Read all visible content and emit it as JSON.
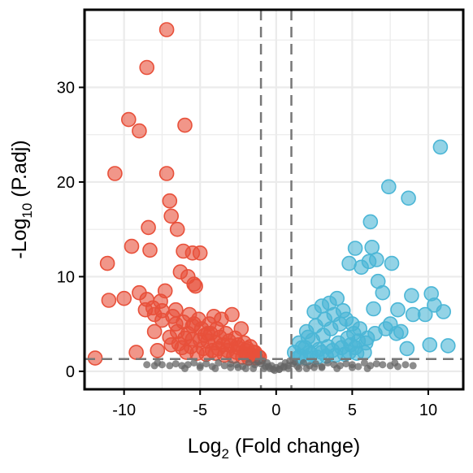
{
  "chart_data": {
    "type": "scatter",
    "title": "",
    "xlabel_main": "Log",
    "xlabel_sub": "2",
    "xlabel_rest": " (Fold change)",
    "ylabel_main": "-Log",
    "ylabel_sub": "10",
    "ylabel_rest": " (P.adj)",
    "xlim": [
      -12.6,
      12.3
    ],
    "ylim": [
      -1.9,
      38.2
    ],
    "x_ticks": [
      -10,
      -5,
      0,
      5,
      10
    ],
    "x_tick_labels": [
      "-10",
      "-5",
      "0",
      "5",
      "10"
    ],
    "y_ticks": [
      0,
      10,
      20,
      30
    ],
    "y_tick_labels": [
      "0",
      "10",
      "20",
      "30"
    ],
    "grid": true,
    "fc_thresholds": [
      -1,
      1
    ],
    "p_threshold": 1.3,
    "colors": {
      "down": "#e8503a",
      "up": "#4bb6d6",
      "ns": "#666666",
      "threshold": "#777777",
      "grid": "#ebebeb"
    },
    "series": [
      {
        "key": "down",
        "color": "#e8503a",
        "x": [
          -7.2,
          -8.5,
          -9.7,
          -9.0,
          -6.0,
          -10.6,
          -7.2,
          -7.0,
          -6.9,
          -6.5,
          -8.4,
          -9.5,
          -8.3,
          -6.1,
          -5.5,
          -5.0,
          -11.1,
          -9.0,
          -6.3,
          -5.8,
          -5.4,
          -10.0,
          -8.5,
          -7.6,
          -11.0,
          -8.1,
          -7.5,
          -8.0,
          -7.5,
          -6.6,
          -5.5,
          -4.5,
          -6.5,
          -5.8,
          -4.7,
          -6.0,
          -5.5,
          -5.0,
          -4.5,
          -4.0,
          -3.5,
          -3.0,
          -2.5,
          -2.0,
          -1.5,
          -1.2,
          -6.2,
          -5.6,
          -4.8,
          -4.2,
          -3.8,
          -3.2,
          -2.6,
          -2.0,
          -1.6,
          -1.1,
          -7.0,
          -6.4,
          -5.9,
          -5.2,
          -4.6,
          -4.0,
          -3.4,
          -2.8,
          -2.2,
          -1.8,
          -1.3,
          -6.8,
          -6.1,
          -5.4,
          -4.9,
          -4.3,
          -3.7,
          -3.1,
          -2.5,
          -1.9,
          -1.4,
          -7.3,
          -6.6,
          -5.7,
          -5.1,
          -4.4,
          -3.9,
          -3.3,
          -2.7,
          -2.1,
          -1.7,
          -8.0,
          -9.2,
          -11.9,
          -8.6,
          -7.8,
          -6.9,
          -5.3,
          -4.1,
          -3.6,
          -2.9,
          -2.3
        ],
        "y": [
          36.1,
          32.1,
          26.6,
          25.4,
          26.0,
          20.9,
          20.9,
          18.0,
          16.4,
          15.0,
          15.2,
          13.2,
          12.8,
          12.7,
          12.5,
          12.5,
          11.4,
          8.3,
          10.5,
          10.0,
          9.2,
          7.7,
          7.6,
          7.4,
          7.5,
          6.7,
          6.4,
          6.0,
          5.4,
          5.0,
          4.8,
          4.0,
          4.2,
          4.0,
          3.8,
          3.5,
          3.4,
          3.3,
          3.2,
          3.0,
          2.8,
          2.7,
          2.5,
          2.2,
          2.0,
          1.6,
          2.5,
          2.6,
          2.4,
          2.2,
          2.4,
          2.2,
          2.0,
          1.8,
          1.7,
          1.5,
          3.6,
          2.9,
          2.0,
          1.9,
          1.8,
          1.9,
          1.7,
          1.6,
          1.5,
          1.4,
          1.4,
          5.8,
          5.2,
          5.0,
          4.5,
          4.0,
          3.6,
          3.2,
          2.8,
          2.4,
          2.0,
          8.5,
          6.5,
          6.0,
          5.5,
          5.0,
          4.5,
          4.0,
          3.5,
          3.0,
          2.6,
          4.2,
          2.0,
          1.4,
          6.5,
          2.2,
          2.8,
          9.0,
          5.8,
          5.5,
          6.0,
          4.5
        ]
      },
      {
        "key": "up",
        "color": "#4bb6d6",
        "x": [
          10.8,
          7.4,
          8.7,
          6.2,
          5.2,
          6.3,
          6.6,
          4.8,
          5.6,
          7.6,
          6.1,
          8.9,
          10.2,
          10.4,
          9.8,
          11.0,
          6.7,
          7.0,
          8.0,
          9.0,
          8.2,
          7.9,
          10.1,
          11.3,
          8.6,
          4.0,
          3.5,
          3.0,
          2.5,
          2.0,
          1.5,
          1.2,
          4.4,
          3.8,
          3.2,
          2.6,
          2.1,
          1.7,
          5.0,
          4.6,
          4.2,
          3.6,
          3.1,
          2.4,
          1.9,
          5.5,
          5.1,
          4.7,
          4.1,
          3.4,
          2.8,
          2.2,
          1.6,
          6.0,
          5.4,
          4.9,
          4.3,
          3.7,
          3.0,
          2.3,
          5.8,
          5.3,
          4.5,
          3.9,
          3.3,
          2.7,
          2.0,
          1.4,
          7.2,
          6.5,
          5.9,
          5.2,
          4.8,
          6.4,
          7.5
        ],
        "y": [
          23.7,
          19.5,
          18.3,
          15.8,
          13.0,
          13.1,
          11.8,
          11.4,
          11.0,
          11.4,
          11.6,
          8.0,
          8.2,
          7.0,
          6.0,
          6.3,
          9.5,
          8.3,
          6.5,
          6.0,
          4.2,
          4.0,
          2.8,
          2.7,
          2.4,
          7.7,
          7.2,
          6.9,
          6.3,
          4.2,
          3.0,
          2.0,
          6.4,
          6.0,
          5.5,
          4.8,
          3.6,
          2.5,
          5.0,
          5.5,
          5.0,
          4.5,
          3.8,
          3.3,
          2.5,
          4.5,
          4.0,
          3.5,
          3.0,
          2.6,
          2.3,
          2.0,
          1.6,
          3.5,
          3.2,
          2.8,
          2.5,
          2.2,
          2.0,
          1.8,
          2.0,
          1.9,
          1.8,
          1.7,
          1.6,
          1.5,
          1.4,
          1.4,
          4.5,
          4.0,
          3.0,
          2.5,
          2.0,
          6.6,
          5.0
        ]
      },
      {
        "key": "ns",
        "color": "#666666",
        "x": [
          -8.5,
          -8.0,
          -7.5,
          -7.0,
          -6.6,
          -6.2,
          -5.8,
          -5.4,
          -5.0,
          -4.6,
          -4.2,
          -3.8,
          -3.4,
          -3.0,
          -2.6,
          -2.2,
          -1.8,
          -1.4,
          -1.0,
          -0.7,
          -0.4,
          -0.1,
          0.2,
          0.5,
          0.8,
          1.1,
          1.4,
          1.8,
          2.2,
          2.6,
          3.0,
          3.4,
          3.8,
          4.2,
          4.6,
          5.0,
          5.4,
          5.8,
          6.2,
          6.6,
          7.0,
          7.5,
          8.0,
          8.5,
          9.0,
          -0.9,
          -0.6,
          -0.3,
          0.0,
          0.3,
          0.6,
          0.9,
          -1.2,
          1.2,
          -0.8,
          0.8,
          -0.5,
          0.5,
          -0.2,
          0.2,
          -6.0,
          -5.0,
          -4.0,
          -3.0,
          -2.0,
          2.0,
          3.0,
          4.0,
          5.0,
          6.0,
          -7.8,
          7.8,
          -1.5,
          1.5,
          -2.5,
          2.5
        ],
        "y": [
          0.7,
          0.6,
          0.7,
          0.6,
          0.8,
          0.6,
          0.7,
          0.9,
          0.6,
          0.8,
          0.5,
          0.9,
          0.6,
          0.8,
          0.7,
          0.5,
          0.9,
          0.7,
          0.8,
          0.5,
          0.3,
          0.1,
          0.2,
          0.4,
          0.6,
          0.8,
          0.5,
          0.9,
          0.6,
          0.8,
          0.5,
          0.9,
          0.7,
          0.6,
          0.8,
          0.7,
          0.5,
          0.9,
          0.6,
          0.8,
          0.7,
          0.6,
          0.5,
          0.7,
          0.6,
          1.1,
          0.9,
          0.6,
          0.4,
          0.6,
          0.9,
          1.1,
          1.0,
          1.0,
          0.3,
          0.3,
          0.5,
          0.5,
          0.2,
          0.2,
          0.3,
          0.4,
          0.3,
          0.4,
          0.3,
          0.3,
          0.4,
          0.3,
          0.4,
          0.3,
          0.9,
          0.9,
          0.3,
          0.3,
          0.4,
          0.4
        ]
      }
    ]
  }
}
